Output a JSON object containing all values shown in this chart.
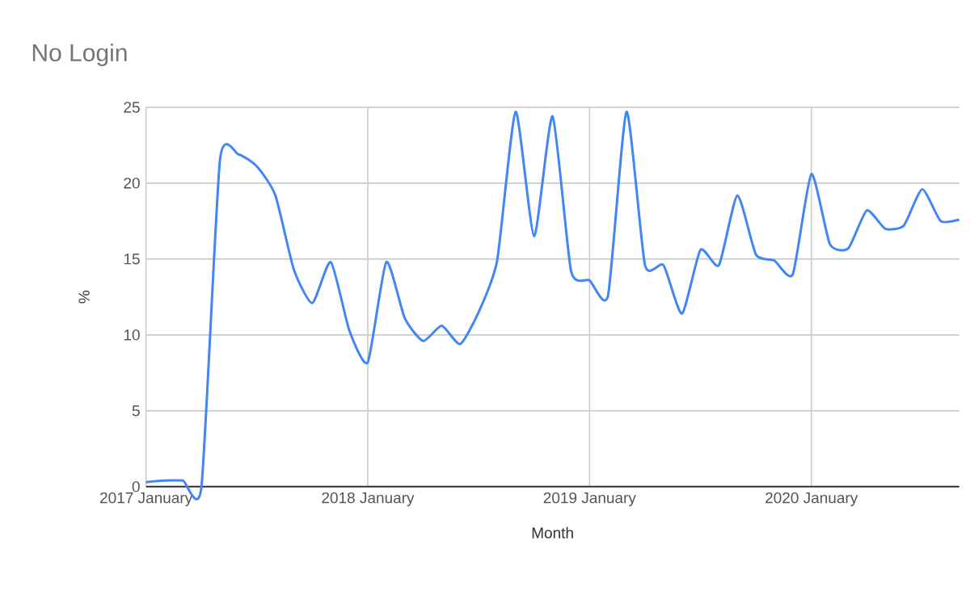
{
  "chart_data": {
    "type": "line",
    "title": "No Login",
    "xlabel": "Month",
    "ylabel": "%",
    "x": [
      "2017-01",
      "2017-02",
      "2017-03",
      "2017-04",
      "2017-05",
      "2017-06",
      "2017-07",
      "2017-08",
      "2017-09",
      "2017-10",
      "2017-11",
      "2017-12",
      "2018-01",
      "2018-02",
      "2018-03",
      "2018-04",
      "2018-05",
      "2018-06",
      "2018-07",
      "2018-08",
      "2018-09",
      "2018-10",
      "2018-11",
      "2018-12",
      "2019-01",
      "2019-02",
      "2019-03",
      "2019-04",
      "2019-05",
      "2019-06",
      "2019-07",
      "2019-08",
      "2019-09",
      "2019-10",
      "2019-11",
      "2019-12",
      "2020-01",
      "2020-02",
      "2020-03",
      "2020-04",
      "2020-05",
      "2020-06",
      "2020-07",
      "2020-08",
      "2020-09"
    ],
    "series": [
      {
        "color": "#4285f4",
        "values": [
          0.3,
          0.4,
          0.4,
          0,
          21.5,
          21.9,
          21.1,
          19.2,
          14.3,
          12.1,
          14.8,
          10.3,
          8.2,
          14.8,
          11.1,
          9.6,
          10.6,
          9.4,
          11.5,
          14.9,
          24.7,
          16.5,
          24.4,
          14.2,
          13.6,
          12.6,
          24.7,
          14.6,
          14.6,
          11.4,
          15.6,
          14.6,
          19.2,
          15.3,
          14.9,
          14.0,
          20.6,
          16.0,
          15.7,
          18.2,
          17.0,
          17.2,
          19.6,
          17.5,
          17.6
        ]
      }
    ],
    "xlim": [
      "2017-01",
      "2020-09"
    ],
    "xticks": [
      {
        "value": "2017-01",
        "label": "2017 January"
      },
      {
        "value": "2018-01",
        "label": "2018 January"
      },
      {
        "value": "2019-01",
        "label": "2019 January"
      },
      {
        "value": "2020-01",
        "label": "2020 January"
      }
    ],
    "ylim": [
      0,
      25
    ],
    "yticks": [
      0,
      5,
      10,
      15,
      20,
      25
    ],
    "grid": true,
    "marker": "none",
    "line_style": "solid"
  }
}
